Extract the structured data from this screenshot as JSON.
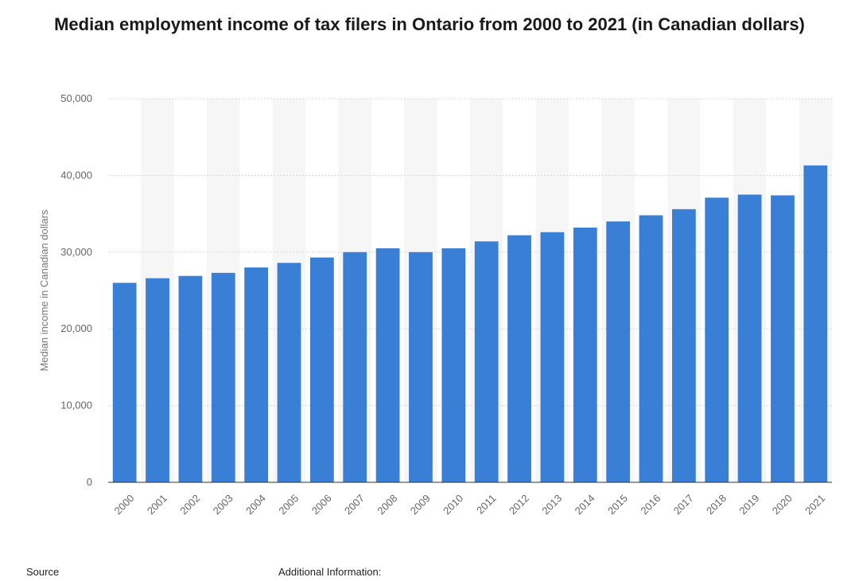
{
  "chart_data": {
    "type": "bar",
    "title": "Median employment income of tax filers in Ontario from 2000 to 2021 (in Canadian dollars)",
    "xlabel": "",
    "ylabel": "Median income in Canadian dollars",
    "ylim": [
      0,
      50000
    ],
    "yticks": [
      "0",
      "10,000",
      "20,000",
      "30,000",
      "40,000",
      "50,000"
    ],
    "grid": true,
    "categories": [
      "2000",
      "2001",
      "2002",
      "2003",
      "2004",
      "2005",
      "2006",
      "2007",
      "2008",
      "2009",
      "2010",
      "2011",
      "2012",
      "2013",
      "2014",
      "2015",
      "2016",
      "2017",
      "2018",
      "2019",
      "2020",
      "2021"
    ],
    "values": [
      26000,
      26600,
      26900,
      27300,
      28000,
      28600,
      29300,
      30000,
      30500,
      30000,
      30500,
      31400,
      32200,
      32600,
      33200,
      34000,
      34800,
      35600,
      37100,
      37500,
      37400,
      41300
    ],
    "bar_color": "#3a7fd6"
  },
  "footer": {
    "source": "Source",
    "additional": "Additional Information:"
  }
}
